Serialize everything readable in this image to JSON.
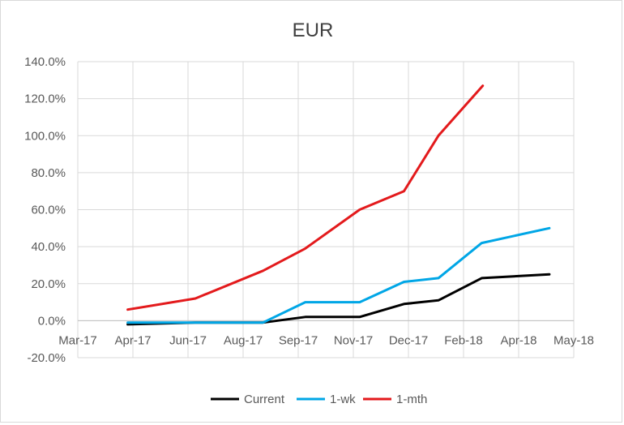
{
  "chart_data": {
    "type": "line",
    "title": "EUR",
    "xlabel": "",
    "ylabel": "",
    "x_ticks": [
      "Mar-17",
      "Apr-17",
      "Jun-17",
      "Aug-17",
      "Sep-17",
      "Nov-17",
      "Dec-17",
      "Feb-18",
      "Apr-18",
      "May-18"
    ],
    "y_ticks": [
      "-20.0%",
      "0.0%",
      "20.0%",
      "40.0%",
      "60.0%",
      "80.0%",
      "100.0%",
      "120.0%",
      "140.0%"
    ],
    "xlim": [
      "2017-03-01",
      "2018-05-22"
    ],
    "ylim": [
      -20,
      140
    ],
    "y_unit": "%",
    "grid": true,
    "legend_position": "bottom",
    "series": [
      {
        "name": "Current",
        "color": "#000000",
        "points": [
          {
            "x": "2017-04-15",
            "y": -2
          },
          {
            "x": "2017-06-15",
            "y": -1
          },
          {
            "x": "2017-08-15",
            "y": -1
          },
          {
            "x": "2017-09-22",
            "y": 2
          },
          {
            "x": "2017-11-10",
            "y": 2
          },
          {
            "x": "2017-12-20",
            "y": 9
          },
          {
            "x": "2018-01-20",
            "y": 11
          },
          {
            "x": "2018-02-28",
            "y": 23
          },
          {
            "x": "2018-04-30",
            "y": 25
          }
        ]
      },
      {
        "name": "1-wk",
        "color": "#00a6e6",
        "points": [
          {
            "x": "2017-04-15",
            "y": -1
          },
          {
            "x": "2017-06-15",
            "y": -1
          },
          {
            "x": "2017-08-15",
            "y": -1
          },
          {
            "x": "2017-09-22",
            "y": 10
          },
          {
            "x": "2017-11-10",
            "y": 10
          },
          {
            "x": "2017-12-20",
            "y": 21
          },
          {
            "x": "2018-01-20",
            "y": 23
          },
          {
            "x": "2018-02-28",
            "y": 42
          },
          {
            "x": "2018-04-30",
            "y": 50
          }
        ]
      },
      {
        "name": "1-mth",
        "color": "#e31a1c",
        "points": [
          {
            "x": "2017-04-15",
            "y": 6
          },
          {
            "x": "2017-06-15",
            "y": 12
          },
          {
            "x": "2017-08-15",
            "y": 27
          },
          {
            "x": "2017-09-22",
            "y": 39
          },
          {
            "x": "2017-11-10",
            "y": 60
          },
          {
            "x": "2017-12-20",
            "y": 70
          },
          {
            "x": "2018-01-20",
            "y": 100
          },
          {
            "x": "2018-03-01",
            "y": 127
          }
        ]
      }
    ]
  }
}
